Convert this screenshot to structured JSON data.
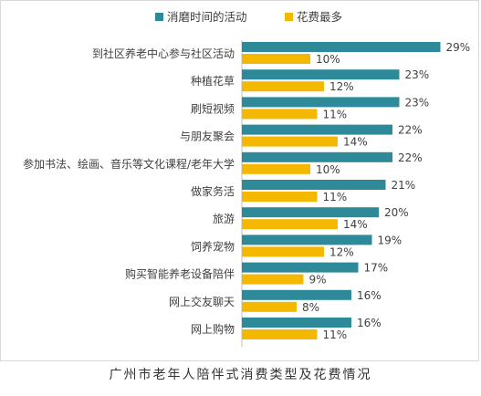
{
  "caption": "广州市老年人陪伴式消费类型及花费情况",
  "colors": {
    "series1": "#2e8a99",
    "series2": "#f5b800",
    "text": "#404040",
    "axis": "#bfbfbf"
  },
  "chart_data": {
    "type": "bar",
    "orientation": "horizontal",
    "legend_position": "top-center",
    "grid": false,
    "categories": [
      "到社区养老中心参与社区活动",
      "种植花草",
      "刷短视频",
      "与朋友聚会",
      "参加书法、绘画、音乐等文化课程/老年大学",
      "做家务活",
      "旅游",
      "饲养宠物",
      "购买智能养老设备陪伴",
      "网上交友聊天",
      "网上购物"
    ],
    "series": [
      {
        "name": "消磨时间的活动",
        "values": [
          29,
          23,
          23,
          22,
          22,
          21,
          20,
          19,
          17,
          16,
          16
        ]
      },
      {
        "name": "花费最多",
        "values": [
          10,
          12,
          11,
          14,
          10,
          11,
          14,
          12,
          9,
          8,
          11
        ]
      }
    ],
    "value_suffix": "%",
    "xlim": [
      0,
      30
    ]
  }
}
